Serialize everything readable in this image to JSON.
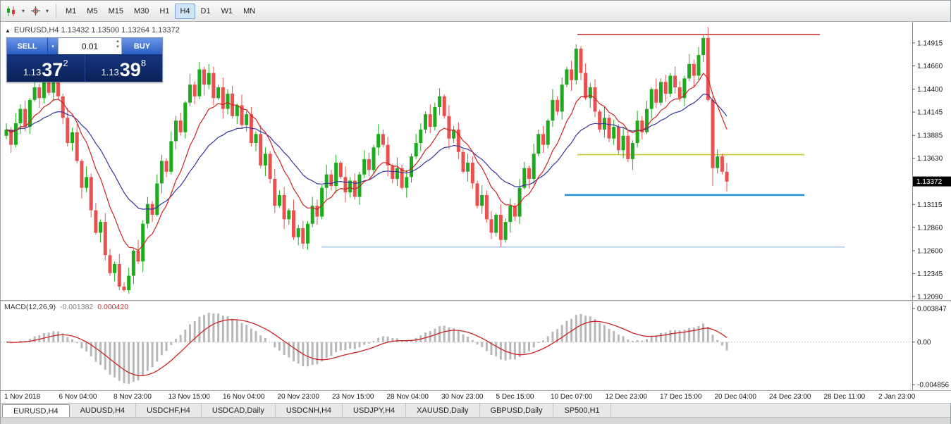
{
  "toolbar": {
    "timeframes": [
      "M1",
      "M5",
      "M15",
      "M30",
      "H1",
      "H4",
      "D1",
      "W1",
      "MN"
    ],
    "active_timeframe": "H4",
    "icons": [
      "candlestick-chart-icon",
      "crosshair-icon"
    ]
  },
  "header": {
    "marker": "▲",
    "title": "EURUSD,H4 1.13432 1.13500 1.13264 1.13372"
  },
  "trade_panel": {
    "sell_label": "SELL",
    "buy_label": "BUY",
    "lot_value": "0.01",
    "sell_price": {
      "base": "1.13",
      "pips": "37",
      "frac": "2"
    },
    "buy_price": {
      "base": "1.13",
      "pips": "39",
      "frac": "8"
    }
  },
  "price_axis": {
    "labels": [
      "1.14915",
      "1.14660",
      "1.14400",
      "1.14145",
      "1.13885",
      "1.13630",
      "1.13115",
      "1.12860",
      "1.12600",
      "1.12345",
      "1.12090"
    ],
    "current_price": "1.13372"
  },
  "macd_panel": {
    "label": "MACD(12,26,9)",
    "value_main": "-0.001382",
    "value_signal": "0.000420"
  },
  "date_axis": [
    "1 Nov 2018",
    "6 Nov 04:00",
    "8 Nov 23:00",
    "13 Nov 15:00",
    "16 Nov 04:00",
    "20 Nov 23:00",
    "23 Nov 15:00",
    "28 Nov 04:00",
    "30 Nov 23:00",
    "5 Dec 15:00",
    "10 Dec 07:00",
    "12 Dec 23:00",
    "17 Dec 15:00",
    "20 Dec 04:00",
    "24 Dec 23:00",
    "28 Dec 11:00",
    "2 Jan 23:00"
  ],
  "tabs": [
    "EURUSD,H4",
    "AUDUSD,H4",
    "USDCHF,H4",
    "USDCAD,Daily",
    "USDCNH,H4",
    "USDJPY,H4",
    "XAUUSD,Daily",
    "GBPUSD,Daily",
    "SP500,H1"
  ],
  "active_tab": "EURUSD,H4",
  "colors": {
    "up": "#1daa1d",
    "down": "#ea5050",
    "badge_bg": "#000000",
    "badge_text": "#ffffff",
    "axis_text": "#1a1a1a"
  },
  "chart_data": {
    "type": "candlestick",
    "symbol": "EURUSD",
    "timeframe": "H4",
    "title": "EURUSD,H4",
    "ohlc_current": {
      "open": 1.13432,
      "high": 1.135,
      "low": 1.13264,
      "close": 1.13372
    },
    "ylim": [
      1.1205,
      1.1515
    ],
    "first_open": 1.1388,
    "closes": [
      1.1395,
      1.1378,
      1.1402,
      1.1418,
      1.1398,
      1.1428,
      1.1442,
      1.143,
      1.1448,
      1.1436,
      1.145,
      1.1432,
      1.1408,
      1.138,
      1.1392,
      1.136,
      1.133,
      1.1342,
      1.1305,
      1.128,
      1.1292,
      1.1255,
      1.1235,
      1.1245,
      1.122,
      1.1216,
      1.1232,
      1.126,
      1.1248,
      1.129,
      1.1312,
      1.13,
      1.1335,
      1.136,
      1.1348,
      1.1382,
      1.1405,
      1.1392,
      1.1425,
      1.1445,
      1.1432,
      1.1462,
      1.1445,
      1.1458,
      1.143,
      1.1442,
      1.1418,
      1.1435,
      1.141,
      1.1422,
      1.14,
      1.1412,
      1.138,
      1.139,
      1.1355,
      1.1368,
      1.134,
      1.131,
      1.1322,
      1.1295,
      1.1305,
      1.1275,
      1.1285,
      1.1268,
      1.129,
      1.131,
      1.1298,
      1.133,
      1.1345,
      1.1332,
      1.1358,
      1.1342,
      1.1325,
      1.1338,
      1.132,
      1.1345,
      1.1362,
      1.135,
      1.1375,
      1.139,
      1.1378,
      1.1355,
      1.134,
      1.1352,
      1.133,
      1.1342,
      1.1365,
      1.138,
      1.1395,
      1.1412,
      1.1398,
      1.142,
      1.1432,
      1.141,
      1.1385,
      1.1395,
      1.137,
      1.1348,
      1.1358,
      1.1335,
      1.131,
      1.1322,
      1.1295,
      1.128,
      1.13,
      1.1272,
      1.1292,
      1.131,
      1.1298,
      1.133,
      1.1352,
      1.134,
      1.1368,
      1.139,
      1.1378,
      1.1405,
      1.1428,
      1.1415,
      1.1445,
      1.1462,
      1.145,
      1.1485,
      1.1458,
      1.143,
      1.1442,
      1.1415,
      1.1395,
      1.1408,
      1.1385,
      1.1398,
      1.1372,
      1.1388,
      1.1362,
      1.138,
      1.1405,
      1.1392,
      1.1418,
      1.144,
      1.1425,
      1.1448,
      1.1435,
      1.1455,
      1.1442,
      1.143,
      1.1452,
      1.1468,
      1.1455,
      1.1478,
      1.1497,
      1.1428,
      1.1352,
      1.1365,
      1.1348,
      1.1337
    ],
    "wick_high": [
      0.0007,
      0.0003,
      0.0011,
      0.0005,
      0.0009,
      0.0002,
      0.0012,
      0.0004,
      0.0008,
      0.0003,
      0.001
    ],
    "wick_low": [
      0.0004,
      0.0009,
      0.0003,
      0.0012,
      0.0005,
      0.0008,
      0.0002,
      0.0011,
      0.0006,
      0.0003,
      0.0009,
      0.0004,
      0.0007
    ],
    "wick_overrides": {
      "25": {
        "l": 1.1214
      },
      "41": {
        "h": 1.147
      },
      "63": {
        "l": 1.1262
      },
      "105": {
        "l": 1.1264
      },
      "121": {
        "h": 1.149
      },
      "148": {
        "h": 1.15
      },
      "150": {
        "l": 1.1332
      },
      "153": {
        "l": 1.1326
      }
    },
    "moving_averages": [
      {
        "period": 24,
        "color": "#333399",
        "name": "MA slow"
      },
      {
        "period": 10,
        "color": "#cc2222",
        "name": "MA fast"
      }
    ],
    "hlines": [
      {
        "price": 1.1501,
        "x1": 818,
        "x2": 1162,
        "color": "#c93636",
        "width": 1.6,
        "name": "resistance-line"
      },
      {
        "price": 1.1367,
        "x1": 818,
        "x2": 1140,
        "color": "#c8c832",
        "width": 1.6,
        "name": "yellow-level-line"
      },
      {
        "price": 1.1322,
        "x1": 800,
        "x2": 1140,
        "color": "#1e8fe0",
        "width": 2.5,
        "name": "support-line"
      },
      {
        "price": 1.1264,
        "x1": 455,
        "x2": 1197,
        "color": "#8ab6e0",
        "width": 1.2,
        "name": "minor-support-line"
      }
    ],
    "macd": {
      "fast": 12,
      "slow": 26,
      "signal": 9,
      "ylim": [
        -0.0055,
        0.00465
      ],
      "hist_color": "#b8b8b8",
      "signal_color": "#cc2222",
      "axis": [
        {
          "value": 0.003847,
          "label": "0.003847"
        },
        {
          "value": 0,
          "label": "0.00"
        },
        {
          "value": -0.004856,
          "label": "-0.004856"
        }
      ]
    }
  }
}
